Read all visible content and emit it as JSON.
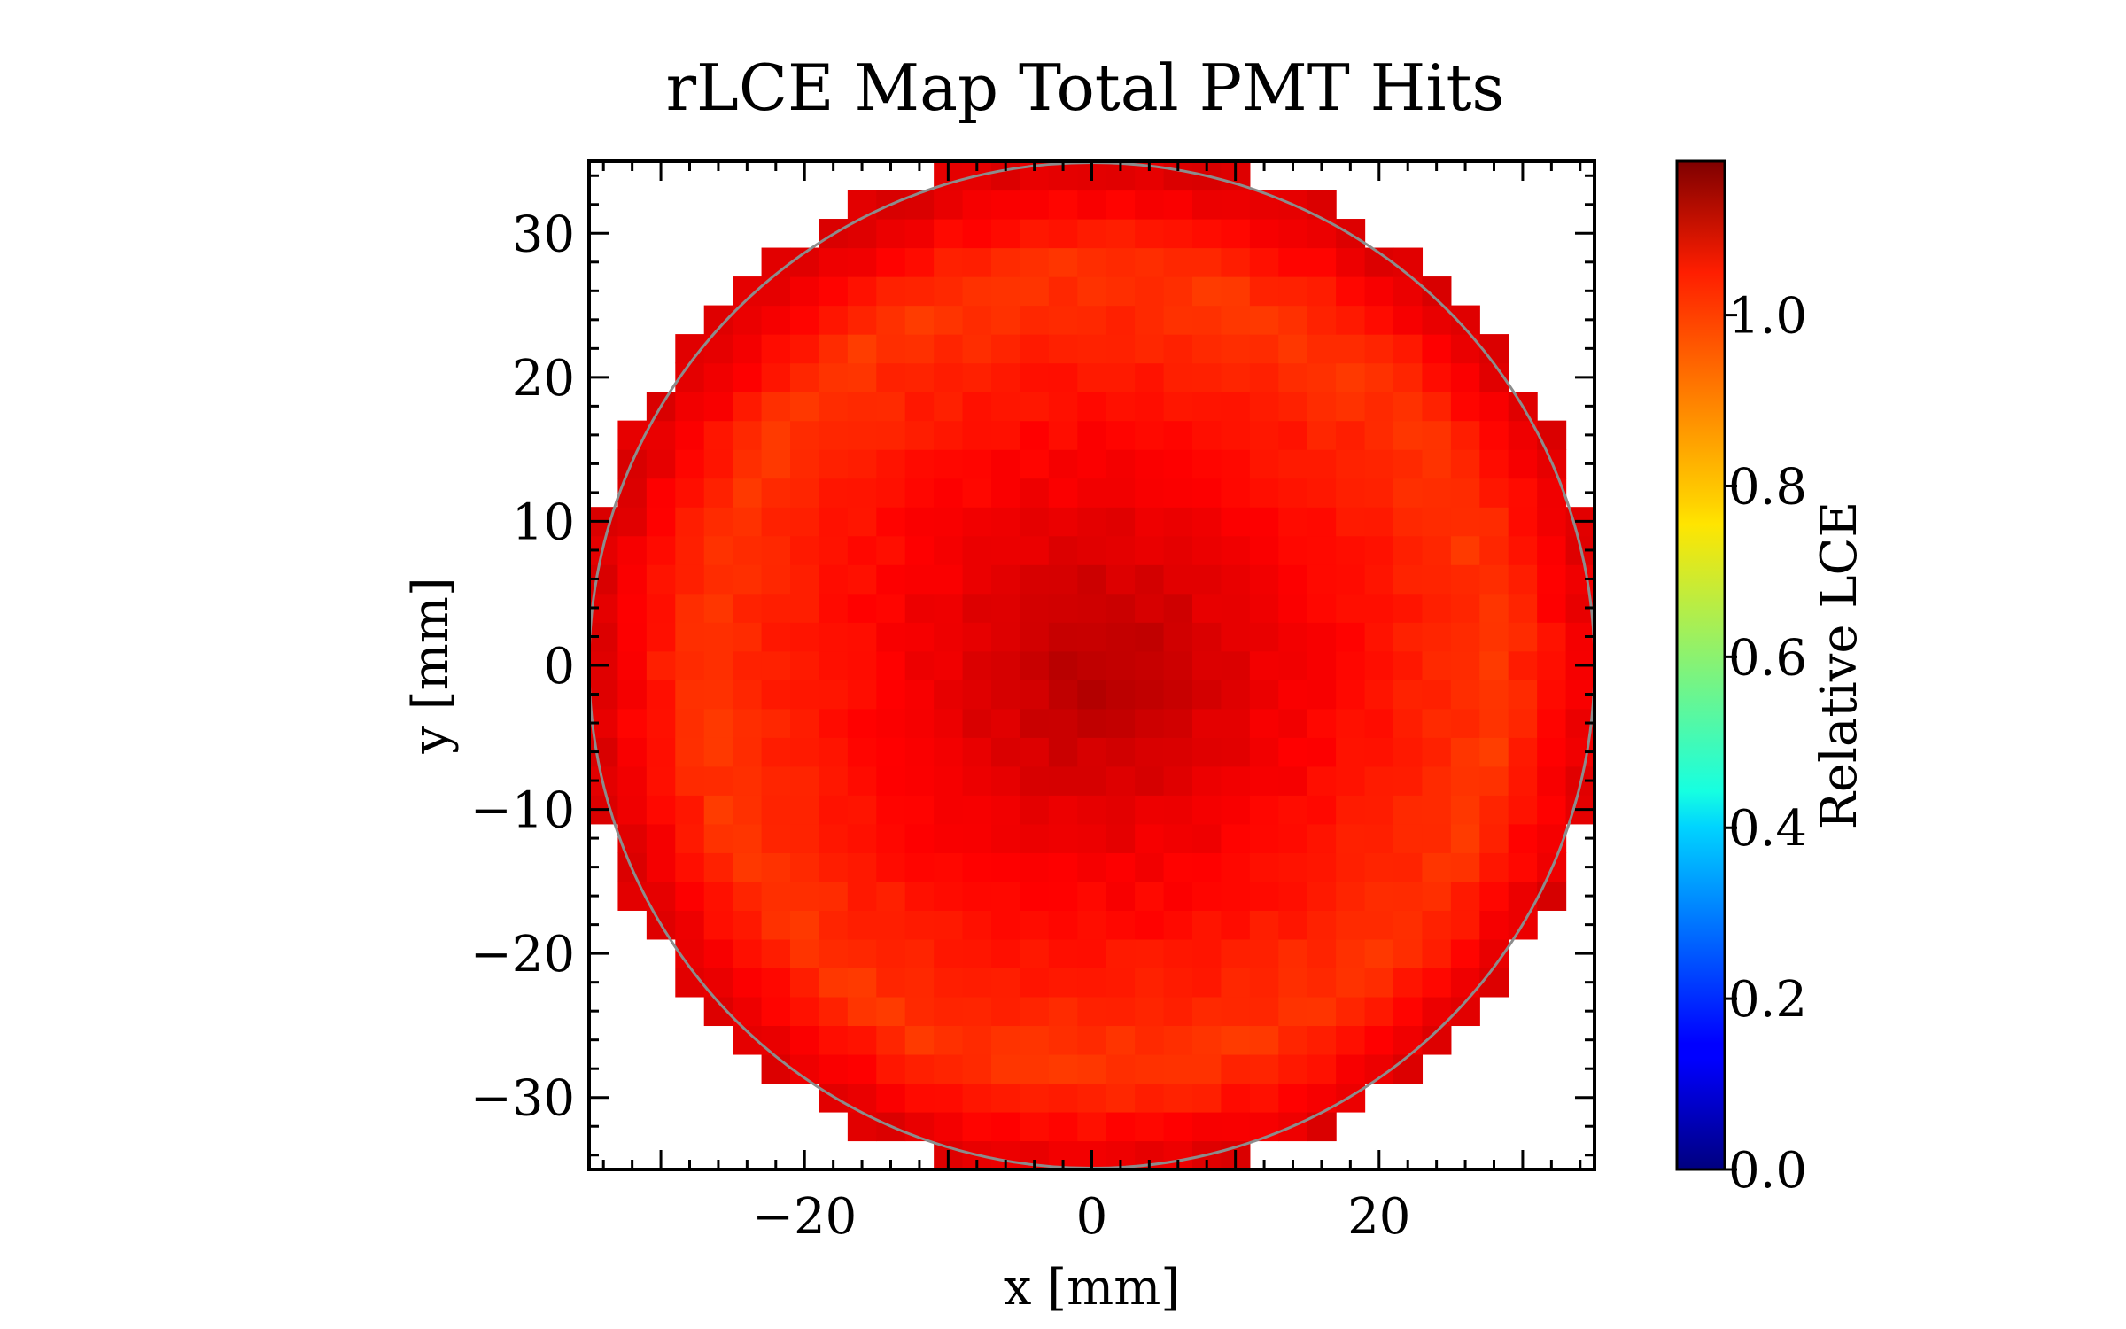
{
  "chart_data": {
    "type": "heatmap",
    "title": "rLCE Map Total PMT Hits",
    "xlabel": "x [mm]",
    "ylabel": "y [mm]",
    "xlim": [
      -35,
      35
    ],
    "ylim": [
      -35,
      35
    ],
    "x_ticks": [
      -20,
      0,
      20
    ],
    "x_tick_labels": [
      "−20",
      "0",
      "20"
    ],
    "y_ticks": [
      -30,
      -20,
      -10,
      0,
      10,
      20,
      30
    ],
    "y_tick_labels": [
      "−30",
      "−20",
      "−10",
      "0",
      "10",
      "20",
      "30"
    ],
    "grid": false,
    "bin_size_mm": 2,
    "circle_radius_mm": 35,
    "colormap": "jet",
    "colorbar": {
      "label": "Relative LCE",
      "range": [
        0.0,
        1.18
      ],
      "ticks": [
        0.0,
        0.2,
        0.4,
        0.6,
        0.8,
        1.0
      ],
      "tick_labels": [
        "0.0",
        "0.2",
        "0.4",
        "0.6",
        "0.8",
        "1.0"
      ]
    },
    "value_profile": {
      "center_value": 1.12,
      "mid_radius_value": 1.05,
      "outer_ring_value": 0.97,
      "edge_value": 1.07
    }
  }
}
